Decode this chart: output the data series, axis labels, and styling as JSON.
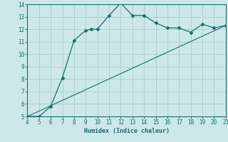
{
  "xlabel": "Humidex (Indice chaleur)",
  "background_color": "#cce8e8",
  "grid_color": "#aacccc",
  "line_color": "#1a6b6b",
  "xlim": [
    4,
    21
  ],
  "ylim": [
    5,
    14
  ],
  "xticks": [
    4,
    5,
    6,
    7,
    8,
    9,
    10,
    11,
    12,
    13,
    14,
    15,
    16,
    17,
    18,
    19,
    20,
    21
  ],
  "yticks": [
    5,
    6,
    7,
    8,
    9,
    10,
    11,
    12,
    13,
    14
  ],
  "curve_x": [
    4,
    5,
    6,
    7,
    8,
    9,
    9.5,
    10,
    11,
    12,
    13,
    14,
    15,
    16,
    17,
    18,
    19,
    20,
    21
  ],
  "curve_y": [
    5,
    5,
    5.8,
    8.1,
    11.1,
    11.9,
    12.0,
    12.0,
    13.1,
    14.1,
    13.1,
    13.1,
    12.5,
    12.1,
    12.1,
    11.75,
    12.4,
    12.1,
    12.3
  ],
  "line_x": [
    4,
    21
  ],
  "line_y": [
    5,
    12.3
  ]
}
